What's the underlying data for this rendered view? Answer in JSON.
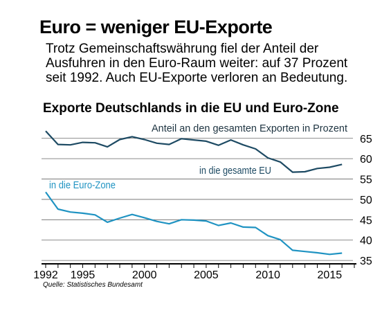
{
  "header": {
    "title": "Euro = weniger EU-Exporte",
    "subtitle_lines": [
      "Trotz Gemeinschaftswährung fiel der Anteil der",
      "Ausfuhren in den Euro-Raum weiter: auf 37 Prozent",
      "seit 1992. Auch EU-Exporte verloren an Bedeutung."
    ]
  },
  "chart_data": {
    "type": "line",
    "title": "Exporte Deutschlands in die EU und Euro-Zone",
    "unit_label": "Anteil an den gesamten Exporten in Prozent",
    "x": [
      1992,
      1993,
      1994,
      1995,
      1996,
      1997,
      1998,
      1999,
      2000,
      2001,
      2002,
      2003,
      2004,
      2005,
      2006,
      2007,
      2008,
      2009,
      2010,
      2011,
      2012,
      2013,
      2014,
      2015,
      2016
    ],
    "x_ticks": [
      1992,
      1995,
      2000,
      2005,
      2010,
      2015
    ],
    "x_range": [
      1992,
      2017
    ],
    "y_ticks": [
      35,
      40,
      45,
      50,
      55,
      60,
      65
    ],
    "y_range": [
      34,
      67
    ],
    "series": [
      {
        "name": "in die gesamte EU",
        "color": "#1d4a63",
        "values": [
          66.8,
          63.5,
          63.4,
          64.0,
          63.9,
          62.9,
          64.7,
          65.4,
          64.7,
          63.8,
          63.5,
          64.9,
          64.6,
          64.3,
          63.3,
          64.6,
          63.4,
          62.4,
          60.2,
          59.2,
          56.7,
          56.8,
          57.6,
          57.9,
          58.6
        ]
      },
      {
        "name": "in die Euro-Zone",
        "color": "#1f93c2",
        "values": [
          51.8,
          47.6,
          46.9,
          46.6,
          46.2,
          44.4,
          45.4,
          46.3,
          45.5,
          44.6,
          44.0,
          45.0,
          44.9,
          44.7,
          43.6,
          44.2,
          43.2,
          43.1,
          41.1,
          40.1,
          37.5,
          37.2,
          36.9,
          36.5,
          36.8
        ]
      }
    ]
  },
  "footer": {
    "source": "Quelle: Statistisches Bundesamt"
  }
}
